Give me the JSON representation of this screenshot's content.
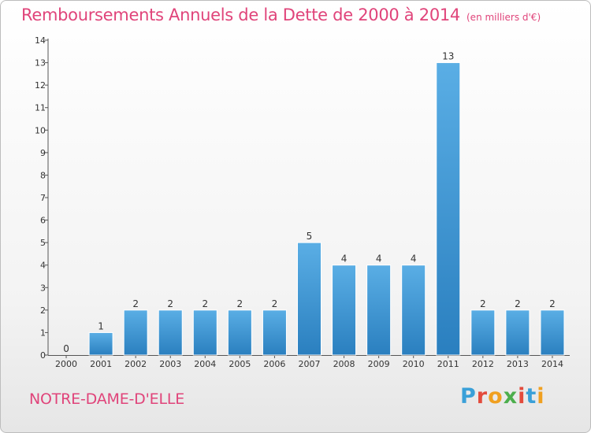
{
  "header": {
    "title": "Remboursements Annuels de la Dette de 2000 à 2014",
    "unit": "(en milliers d'€)"
  },
  "footer": {
    "commune": "NOTRE-DAME-D'ELLE",
    "logo_letters": [
      "P",
      "r",
      "o",
      "x",
      "i",
      "t",
      "i"
    ],
    "logo_colors": [
      "#3aa0d8",
      "#e34b3c",
      "#f0a020",
      "#4cae4c",
      "#e34b3c",
      "#3aa0d8",
      "#f0a020"
    ]
  },
  "chart_data": {
    "type": "bar",
    "categories": [
      "2000",
      "2001",
      "2002",
      "2003",
      "2004",
      "2005",
      "2006",
      "2007",
      "2008",
      "2009",
      "2010",
      "2011",
      "2012",
      "2013",
      "2014"
    ],
    "values": [
      0,
      1,
      2,
      2,
      2,
      2,
      2,
      5,
      4,
      4,
      4,
      13,
      2,
      2,
      2
    ],
    "data_labels": [
      "0",
      "1",
      "2",
      "2",
      "2",
      "2",
      "2",
      "5",
      "4",
      "4",
      "4",
      "13",
      "2",
      "2",
      "2"
    ],
    "title": "Remboursements Annuels de la Dette de 2000 à 2014",
    "xlabel": "",
    "ylabel": "",
    "ylim": [
      0,
      14
    ],
    "yticks": [
      "0",
      "1",
      "2",
      "3",
      "4",
      "5",
      "6",
      "7",
      "8",
      "9",
      "10",
      "11",
      "12",
      "13",
      "14"
    ],
    "bar_color_top": "#5aaee5",
    "bar_color_bottom": "#2a7fbf",
    "grid": false
  }
}
